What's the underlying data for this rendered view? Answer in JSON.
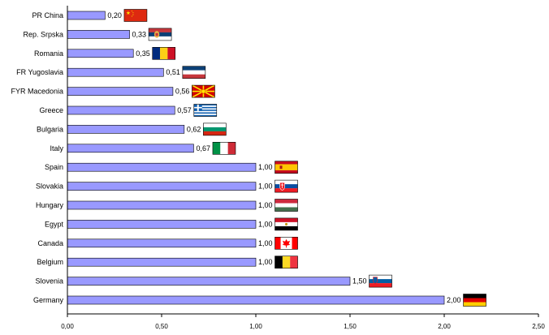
{
  "colors": {
    "bar_fill": "#9999ff",
    "bar_stroke": "#000000"
  },
  "chart_data": {
    "type": "bar",
    "orientation": "horizontal",
    "title": "",
    "xlabel": "",
    "ylabel": "",
    "xlim": [
      0,
      2.5
    ],
    "x_ticks": [
      "0,00",
      "0,50",
      "1,00",
      "1,50",
      "2,00",
      "2,50"
    ],
    "x_tick_values": [
      0,
      0.5,
      1.0,
      1.5,
      2.0,
      2.5
    ],
    "grid": false,
    "legend": "none",
    "categories": [
      "PR China",
      "Rep. Srpska",
      "Romania",
      "FR Yugoslavia",
      "FYR Macedonia",
      "Greece",
      "Bulgaria",
      "Italy",
      "Spain",
      "Slovakia",
      "Hungary",
      "Egypt",
      "Canada",
      "Belgium",
      "Slovenia",
      "Germany"
    ],
    "values": [
      0.2,
      0.33,
      0.35,
      0.51,
      0.56,
      0.57,
      0.62,
      0.67,
      1.0,
      1.0,
      1.0,
      1.0,
      1.0,
      1.0,
      1.5,
      2.0
    ],
    "value_labels": [
      "0,20",
      "0,33",
      "0,35",
      "0,51",
      "0,56",
      "0,57",
      "0,62",
      "0,67",
      "1,00",
      "1,00",
      "1,00",
      "1,00",
      "1,00",
      "1,00",
      "1,50",
      "2,00"
    ],
    "flags": [
      "china-flag-icon",
      "srpska-flag-icon",
      "romania-flag-icon",
      "yugoslavia-flag-icon",
      "macedonia-flag-icon",
      "greece-flag-icon",
      "bulgaria-flag-icon",
      "italy-flag-icon",
      "spain-flag-icon",
      "slovakia-flag-icon",
      "hungary-flag-icon",
      "egypt-flag-icon",
      "canada-flag-icon",
      "belgium-flag-icon",
      "slovenia-flag-icon",
      "germany-flag-icon"
    ]
  }
}
